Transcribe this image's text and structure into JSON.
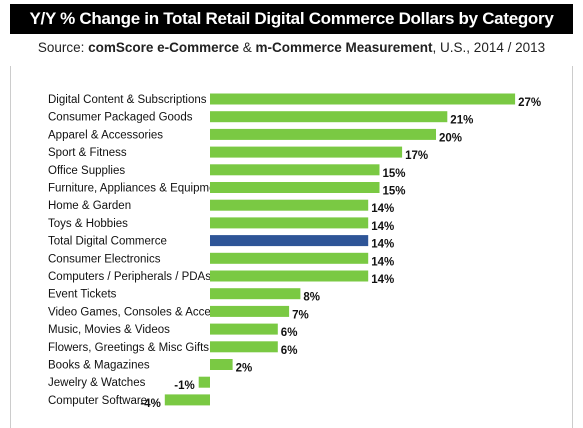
{
  "chart_data": {
    "type": "bar",
    "orientation": "horizontal",
    "title": "Y/Y % Change in Total Retail Digital Commerce Dollars by Category",
    "subtitle": {
      "prefix": "Source: ",
      "source_name": "comScore e-Commerce",
      "amp": " & ",
      "source_name2": "m-Commerce Measurement",
      "suffix": ", U.S., 2014 / 2013"
    },
    "categories": [
      "Digital Content & Subscriptions",
      "Consumer Packaged Goods",
      "Apparel & Accessories",
      "Sport & Fitness",
      "Office Supplies",
      "Furniture, Appliances & Equipment",
      "Home & Garden",
      "Toys & Hobbies",
      "Total Digital Commerce",
      "Consumer Electronics",
      "Computers / Peripherals / PDAs",
      "Event Tickets",
      "Video Games, Consoles & Accessories",
      "Music, Movies & Videos",
      "Flowers, Greetings & Misc Gifts",
      "Books & Magazines",
      "Jewelry & Watches",
      "Computer Software"
    ],
    "values": [
      27,
      21,
      20,
      17,
      15,
      15,
      14,
      14,
      14,
      14,
      14,
      8,
      7,
      6,
      6,
      2,
      -1,
      -4
    ],
    "value_labels": [
      "27%",
      "21%",
      "20%",
      "17%",
      "15%",
      "15%",
      "14%",
      "14%",
      "14%",
      "14%",
      "14%",
      "8%",
      "7%",
      "6%",
      "6%",
      "2%",
      "-1%",
      "-4%"
    ],
    "highlight_category": "Total Digital Commerce",
    "xlim": [
      -4,
      27
    ],
    "grid": false,
    "legend": "none"
  },
  "colors": {
    "bar": "#7ac943",
    "highlight_bar": "#2e5597",
    "highlight_label": "#2e5597",
    "title_bg": "#000000",
    "title_text": "#ffffff"
  }
}
